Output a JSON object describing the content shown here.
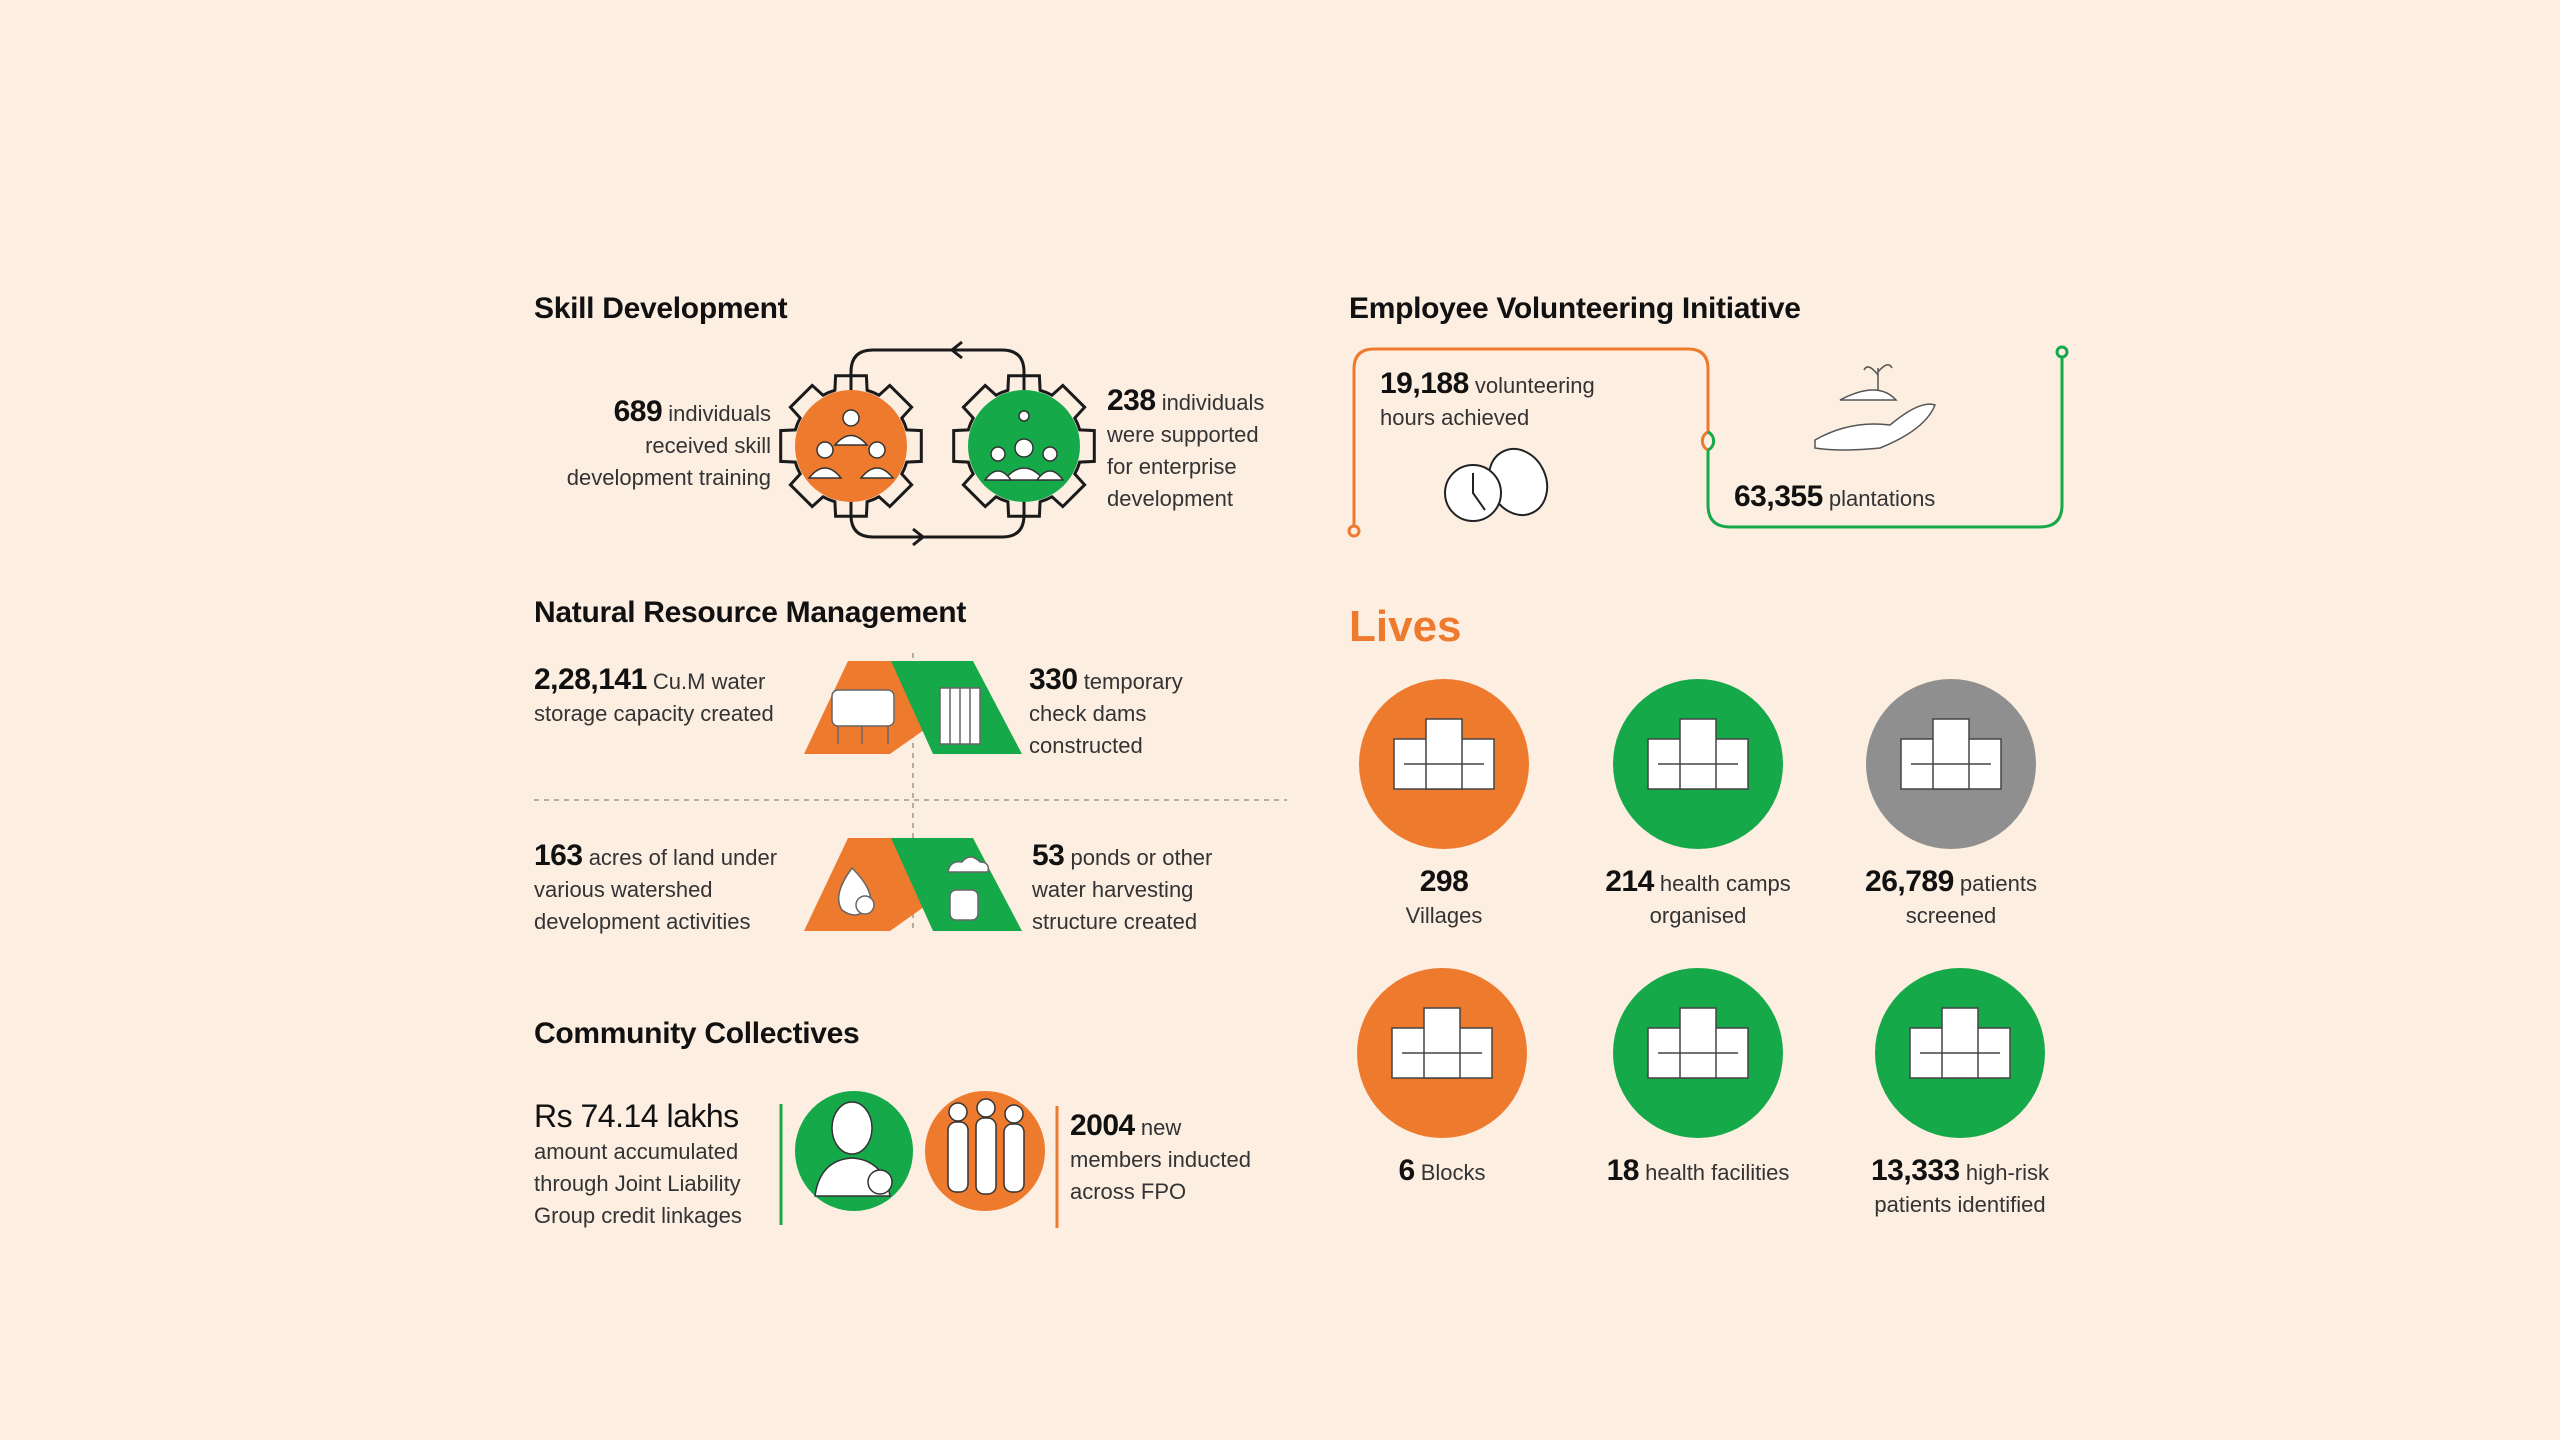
{
  "colors": {
    "background": "#fdeee2",
    "orange": "#ee7a2e",
    "green": "#16a94a",
    "gray": "#8f8f8f",
    "text": "#111111"
  },
  "skill": {
    "title": "Skill Development",
    "left": {
      "value": "689",
      "text": "individuals",
      "line2": "received skill",
      "line3": "development training"
    },
    "right": {
      "value": "238",
      "text": "individuals",
      "line2": "were supported",
      "line3": "for enterprise",
      "line4": "development"
    }
  },
  "volunteer": {
    "title": "Employee Volunteering Initiative",
    "hours": {
      "value": "19,188",
      "text": "volunteering",
      "line2": "hours achieved",
      "icon": "clock-handshake-icon"
    },
    "plantations": {
      "value": "63,355",
      "text": "plantations",
      "icon": "hand-seedling-icon"
    }
  },
  "nrm": {
    "title": "Natural Resource Management",
    "items": [
      {
        "value": "2,28,141",
        "text": "Cu.M water",
        "line2": "storage capacity created",
        "line3": "",
        "icon": "water-tank-icon"
      },
      {
        "value": "330",
        "text": "temporary",
        "line2": "check dams",
        "line3": "constructed",
        "icon": "check-dam-icon"
      },
      {
        "value": "163",
        "text": "acres of land under",
        "line2": "various watershed",
        "line3": "development activities",
        "icon": "water-drop-gear-icon"
      },
      {
        "value": "53",
        "text": "ponds or other",
        "line2": "water harvesting",
        "line3": "structure created",
        "icon": "rain-harvest-icon"
      }
    ]
  },
  "community": {
    "title": "Community Collectives",
    "left": {
      "value": "Rs 74.14 lakhs",
      "line1": "amount accumulated",
      "line2": "through Joint Liability",
      "line3": "Group credit linkages",
      "icon": "woman-rupee-icon"
    },
    "right": {
      "value": "2004",
      "text": "new",
      "line2": "members inducted",
      "line3": "across FPO",
      "icon": "women-group-icon"
    }
  },
  "lives": {
    "title": "Lives",
    "items": [
      {
        "value": "298",
        "text": "",
        "line2": "Villages",
        "color": "orange",
        "icon": "village-icon"
      },
      {
        "value": "214",
        "text": "health camps",
        "line2": "organised",
        "color": "green",
        "icon": "hospital-icon"
      },
      {
        "value": "26,789",
        "text": "patients",
        "line2": "screened",
        "color": "gray",
        "icon": "screening-machine-icon"
      },
      {
        "value": "6",
        "text": "Blocks",
        "line2": "",
        "color": "orange",
        "icon": "map-pin-blocks-icon"
      },
      {
        "value": "18",
        "text": "health facilities",
        "line2": "",
        "color": "green",
        "icon": "health-facility-icon"
      },
      {
        "value": "13,333",
        "text": "high-risk",
        "line2": "patients identified",
        "color": "green",
        "icon": "patient-doctor-icon"
      }
    ]
  }
}
